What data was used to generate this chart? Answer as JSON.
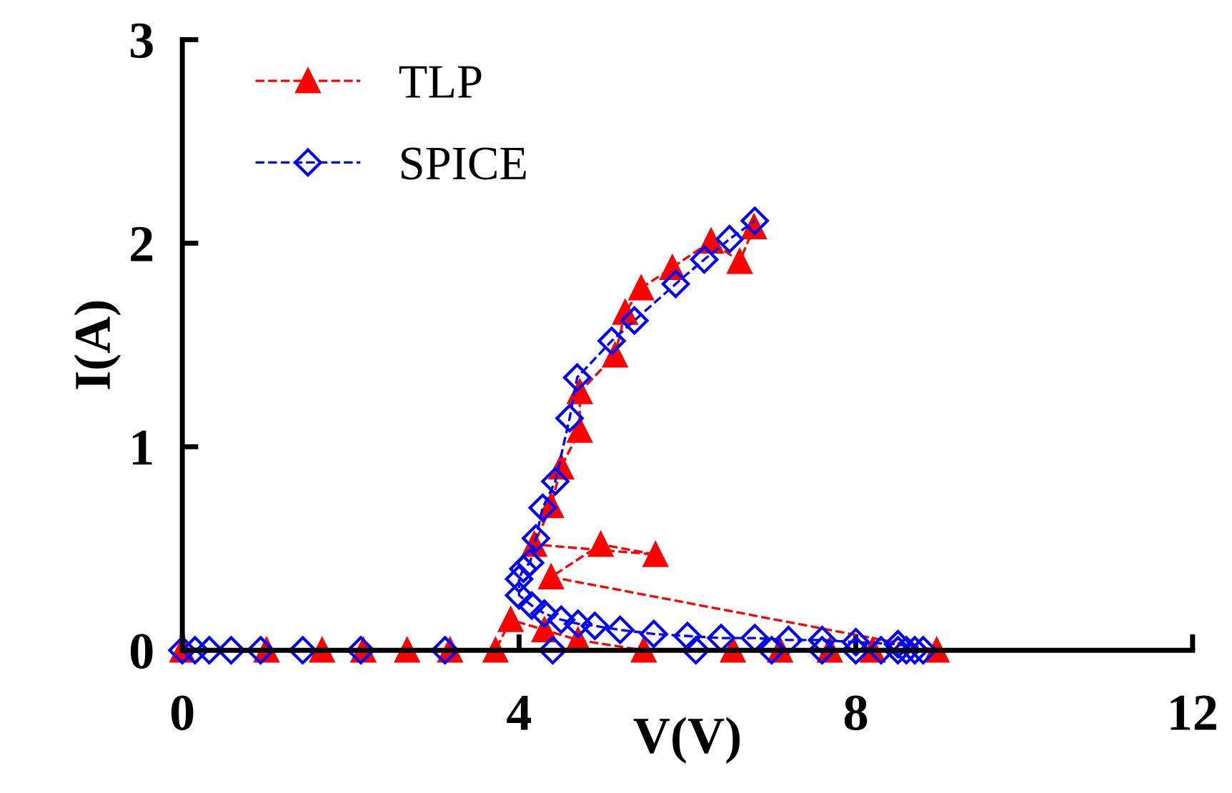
{
  "chart_data": {
    "type": "line",
    "xlabel": "V(V)",
    "ylabel": "I(A)",
    "xlim": [
      0,
      12
    ],
    "ylim": [
      0,
      3
    ],
    "xticks": [
      0,
      4,
      8,
      12
    ],
    "yticks": [
      0,
      1,
      2,
      3
    ],
    "grid": false,
    "legend": "top left",
    "line_style": "dashed",
    "series": [
      {
        "name": "TLP",
        "color": "#ff0000",
        "marker": "triangle",
        "x": [
          0,
          1.0,
          1.66,
          2.15,
          2.67,
          3.18,
          3.72,
          3.9,
          4.3,
          4.7,
          5.48,
          6.54,
          7.1,
          7.69,
          8.2,
          8.96,
          4.38,
          4.97,
          5.62,
          4.18,
          4.38,
          4.5,
          4.72,
          4.72,
          5.14,
          5.26,
          5.45,
          5.82,
          6.28,
          6.62,
          6.79
        ],
        "values": [
          0,
          0,
          0,
          0,
          0,
          0,
          0,
          0.15,
          0.1,
          0.05,
          0,
          0,
          0,
          0,
          0,
          0,
          0.36,
          0.52,
          0.47,
          0.52,
          0.71,
          0.9,
          1.08,
          1.27,
          1.45,
          1.66,
          1.78,
          1.88,
          2.01,
          1.91,
          2.08
        ]
      },
      {
        "name": "SPICE",
        "color": "#0000ff",
        "marker": "diamond",
        "x": [
          0,
          0.15,
          0.32,
          0.58,
          0.93,
          1.43,
          2.12,
          3.12,
          4.4,
          6.1,
          7.0,
          7.6,
          8.0,
          8.3,
          8.5,
          8.6,
          8.7,
          8.8,
          8.5,
          8.0,
          7.6,
          7.2,
          6.8,
          6.4,
          6.0,
          5.6,
          5.2,
          4.9,
          4.7,
          4.5,
          4.3,
          4.15,
          4.0,
          4.0,
          4.05,
          4.13,
          4.2,
          4.28,
          4.43,
          4.6,
          4.69,
          5.1,
          5.37,
          5.86,
          6.2,
          6.5,
          6.8
        ],
        "values": [
          0,
          0,
          0,
          0,
          0,
          0,
          0,
          0,
          0,
          0,
          0,
          0,
          0,
          0,
          0,
          0,
          0,
          0,
          0.03,
          0.04,
          0.05,
          0.05,
          0.06,
          0.06,
          0.07,
          0.08,
          0.1,
          0.12,
          0.13,
          0.15,
          0.18,
          0.22,
          0.27,
          0.35,
          0.4,
          0.43,
          0.55,
          0.7,
          0.83,
          1.14,
          1.34,
          1.52,
          1.62,
          1.8,
          1.92,
          2.02,
          2.11
        ]
      }
    ]
  }
}
